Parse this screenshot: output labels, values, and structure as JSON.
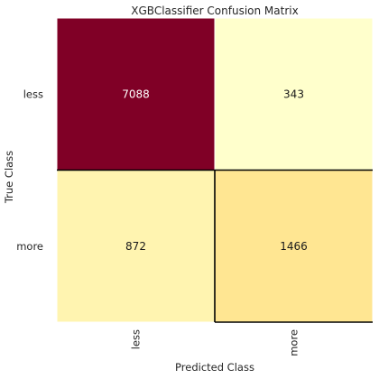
{
  "chart_data": {
    "type": "heatmap",
    "title": "XGBClassifier Confusion Matrix",
    "xlabel": "Predicted Class",
    "ylabel": "True Class",
    "x_categories": [
      "less",
      "more"
    ],
    "y_categories": [
      "less",
      "more"
    ],
    "values": [
      [
        7088,
        343
      ],
      [
        872,
        1466
      ]
    ],
    "grid": false,
    "colormap": "YlOrRd",
    "colors": {
      "high": "#800026",
      "mid": "#fee999",
      "low": "#ffffcc",
      "border": "#000000"
    },
    "highlighted_cell": [
      1,
      1
    ]
  }
}
